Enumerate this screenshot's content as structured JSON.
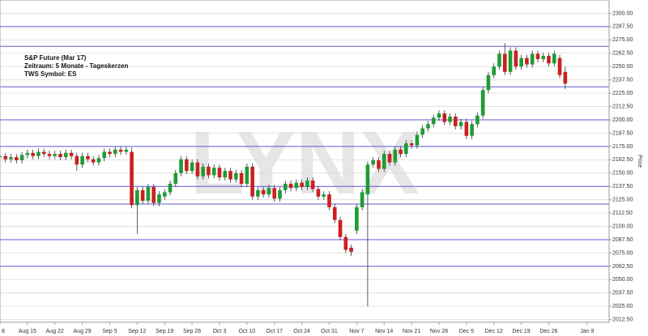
{
  "chart_data": {
    "type": "candlestick",
    "title": "S&P Future (Mar 17)",
    "subtitle": "Zeitraum: 5 Monate - Tageskerzen",
    "symbol": "TWS Symbol: ES",
    "watermark": "LYNX",
    "y_label": "Price",
    "up_color": "#1e9c34",
    "down_color": "#cc1f1f",
    "level_color": "#5b5bd6",
    "xlim": [
      0,
      111
    ],
    "ylim": [
      2010,
      2312.5
    ],
    "grid": true,
    "xticks": [
      {
        "value": 0,
        "label": "8"
      },
      {
        "value": 5,
        "label": "Aug 15"
      },
      {
        "value": 10,
        "label": "Aug 22"
      },
      {
        "value": 15,
        "label": "Aug 29"
      },
      {
        "value": 20,
        "label": "Sep 5"
      },
      {
        "value": 25,
        "label": "Sep 12"
      },
      {
        "value": 30,
        "label": "Sep 19"
      },
      {
        "value": 35,
        "label": "Sep 26"
      },
      {
        "value": 40,
        "label": "Oct 3"
      },
      {
        "value": 45,
        "label": "Oct 10"
      },
      {
        "value": 50,
        "label": "Oct 17"
      },
      {
        "value": 55,
        "label": "Oct 24"
      },
      {
        "value": 60,
        "label": "Oct 31"
      },
      {
        "value": 65,
        "label": "Nov 7"
      },
      {
        "value": 70,
        "label": "Nov 14"
      },
      {
        "value": 75,
        "label": "Nov 21"
      },
      {
        "value": 80,
        "label": "Nov 28"
      },
      {
        "value": 85,
        "label": "Dec 5"
      },
      {
        "value": 90,
        "label": "Dec 12"
      },
      {
        "value": 95,
        "label": "Dec 19"
      },
      {
        "value": 100,
        "label": "Dec 26"
      },
      {
        "value": 107,
        "label": "Jan 9"
      }
    ],
    "yticks": [
      {
        "value": 2012.5,
        "label": "2012.50"
      },
      {
        "value": 2025,
        "label": "2025.00"
      },
      {
        "value": 2037.5,
        "label": "2037.50"
      },
      {
        "value": 2050,
        "label": "2050.00"
      },
      {
        "value": 2062.5,
        "label": "2062.50"
      },
      {
        "value": 2075,
        "label": "2075.00"
      },
      {
        "value": 2087.5,
        "label": "2087.50"
      },
      {
        "value": 2100,
        "label": "2100.00"
      },
      {
        "value": 2112.5,
        "label": "2112.50"
      },
      {
        "value": 2125,
        "label": "2125.00"
      },
      {
        "value": 2137.5,
        "label": "2137.50"
      },
      {
        "value": 2150,
        "label": "2150.00"
      },
      {
        "value": 2162.5,
        "label": "2162.50"
      },
      {
        "value": 2175,
        "label": "2175.00"
      },
      {
        "value": 2187.5,
        "label": "2187.50"
      },
      {
        "value": 2200,
        "label": "2200.00"
      },
      {
        "value": 2212.5,
        "label": "2212.50"
      },
      {
        "value": 2225,
        "label": "2225.00"
      },
      {
        "value": 2237.5,
        "label": "2237.50"
      },
      {
        "value": 2250,
        "label": "2250.00"
      },
      {
        "value": 2262.5,
        "label": "2262.50"
      },
      {
        "value": 2275,
        "label": "2275.00"
      },
      {
        "value": 2287.5,
        "label": "2287.50"
      },
      {
        "value": 2300,
        "label": "2300.00"
      }
    ],
    "levels": [
      2287.5,
      2269,
      2231,
      2200,
      2175,
      2137.5,
      2121,
      2087.5,
      2062.5
    ],
    "open": [
      2165,
      2166,
      2163,
      2165,
      2162,
      2167,
      2169,
      2166,
      2170,
      2168,
      2166,
      2168,
      2165,
      2169,
      2166,
      2158,
      2166,
      2163,
      2160,
      2164,
      2170,
      2168,
      2172,
      2170,
      2170,
      2120,
      2134,
      2124,
      2137,
      2122,
      2128,
      2132,
      2140,
      2150,
      2163,
      2152,
      2160,
      2147,
      2156,
      2148,
      2155,
      2146,
      2152,
      2144,
      2150,
      2140,
      2156,
      2128,
      2134,
      2130,
      2136,
      2126,
      2134,
      2140,
      2136,
      2141,
      2137,
      2143,
      2135,
      2128,
      2130,
      2118,
      2106,
      2090,
      2080,
      2096,
      2118,
      2130,
      2158,
      2162,
      2154,
      2168,
      2160,
      2172,
      2168,
      2178,
      2176,
      2186,
      2192,
      2196,
      2202,
      2206,
      2198,
      2203,
      2194,
      2198,
      2185,
      2196,
      2204,
      2228,
      2242,
      2250,
      2262,
      2245,
      2265,
      2250,
      2258,
      2252,
      2262,
      2257,
      2260,
      2253,
      2258,
      2245
    ],
    "high": [
      2169,
      2169,
      2168,
      2168,
      2170,
      2172,
      2172,
      2173,
      2173,
      2171,
      2171,
      2171,
      2172,
      2172,
      2169,
      2169,
      2169,
      2166,
      2167,
      2173,
      2173,
      2175,
      2175,
      2175,
      2174,
      2137,
      2137,
      2140,
      2140,
      2133,
      2135,
      2143,
      2153,
      2166,
      2166,
      2163,
      2163,
      2159,
      2159,
      2158,
      2158,
      2155,
      2155,
      2153,
      2153,
      2159,
      2159,
      2137,
      2137,
      2139,
      2139,
      2137,
      2143,
      2143,
      2144,
      2144,
      2146,
      2146,
      2138,
      2133,
      2133,
      2121,
      2109,
      2093,
      2083,
      2121,
      2135,
      2161,
      2165,
      2165,
      2171,
      2171,
      2175,
      2175,
      2181,
      2181,
      2189,
      2195,
      2199,
      2205,
      2209,
      2209,
      2206,
      2206,
      2201,
      2201,
      2199,
      2207,
      2231,
      2245,
      2253,
      2265,
      2272,
      2268,
      2268,
      2261,
      2261,
      2265,
      2265,
      2263,
      2263,
      2265,
      2261,
      2250
    ],
    "low": [
      2162,
      2160,
      2160,
      2159,
      2159,
      2164,
      2163,
      2163,
      2165,
      2163,
      2163,
      2162,
      2162,
      2163,
      2152,
      2155,
      2160,
      2157,
      2157,
      2161,
      2165,
      2165,
      2167,
      2167,
      2117,
      2093,
      2121,
      2121,
      2119,
      2119,
      2125,
      2129,
      2137,
      2147,
      2149,
      2149,
      2144,
      2144,
      2145,
      2145,
      2143,
      2143,
      2141,
      2141,
      2137,
      2137,
      2125,
      2125,
      2127,
      2127,
      2123,
      2123,
      2131,
      2133,
      2133,
      2134,
      2134,
      2132,
      2125,
      2125,
      2115,
      2103,
      2087,
      2075,
      2072,
      2093,
      2115,
      2025,
      2155,
      2151,
      2151,
      2157,
      2157,
      2165,
      2165,
      2173,
      2173,
      2183,
      2189,
      2193,
      2199,
      2195,
      2195,
      2191,
      2191,
      2182,
      2182,
      2193,
      2201,
      2225,
      2239,
      2247,
      2242,
      2242,
      2247,
      2247,
      2249,
      2249,
      2254,
      2254,
      2250,
      2250,
      2239,
      2229
    ],
    "close": [
      2166,
      2163,
      2165,
      2162,
      2167,
      2169,
      2166,
      2170,
      2168,
      2166,
      2168,
      2165,
      2169,
      2166,
      2158,
      2166,
      2163,
      2160,
      2164,
      2170,
      2168,
      2172,
      2170,
      2172,
      2120,
      2134,
      2124,
      2137,
      2122,
      2130,
      2132,
      2140,
      2150,
      2163,
      2152,
      2160,
      2147,
      2156,
      2148,
      2155,
      2146,
      2152,
      2144,
      2150,
      2140,
      2156,
      2128,
      2134,
      2130,
      2136,
      2126,
      2134,
      2140,
      2136,
      2141,
      2137,
      2143,
      2135,
      2128,
      2130,
      2118,
      2106,
      2090,
      2078,
      2076,
      2118,
      2132,
      2158,
      2162,
      2154,
      2168,
      2160,
      2172,
      2168,
      2178,
      2176,
      2186,
      2192,
      2196,
      2202,
      2206,
      2198,
      2203,
      2194,
      2198,
      2185,
      2196,
      2204,
      2228,
      2242,
      2250,
      2262,
      2245,
      2265,
      2250,
      2258,
      2252,
      2262,
      2257,
      2260,
      2253,
      2262,
      2242,
      2234
    ]
  }
}
